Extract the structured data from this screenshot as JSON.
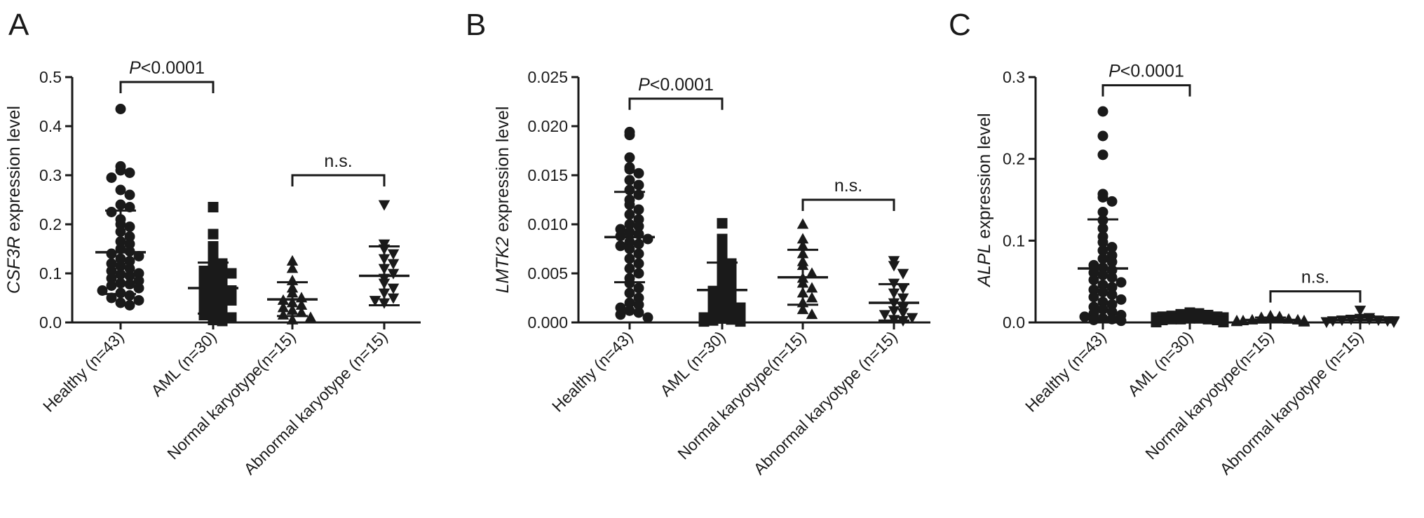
{
  "chart_data": [
    {
      "panel_letter": "A",
      "type": "scatter",
      "ylabel_gene": "CSF3R",
      "ylabel_suffix": " expression level",
      "ylim": [
        0,
        0.5
      ],
      "yticks": [
        "0.0",
        "0.1",
        "0.2",
        "0.3",
        "0.4",
        "0.5"
      ],
      "categories": [
        "Healthy (n=43)",
        "AML (n=30)",
        "Normal karyotype(n=15)",
        "Abnormal karyotype (n=15)"
      ],
      "markers": [
        "circle",
        "square",
        "triangle-up",
        "triangle-down"
      ],
      "series": [
        {
          "values": [
            0.435,
            0.318,
            0.31,
            0.305,
            0.295,
            0.27,
            0.26,
            0.24,
            0.235,
            0.225,
            0.21,
            0.2,
            0.195,
            0.185,
            0.175,
            0.165,
            0.16,
            0.15,
            0.145,
            0.14,
            0.135,
            0.13,
            0.125,
            0.12,
            0.115,
            0.11,
            0.105,
            0.1,
            0.098,
            0.095,
            0.09,
            0.085,
            0.08,
            0.078,
            0.075,
            0.07,
            0.065,
            0.06,
            0.055,
            0.05,
            0.045,
            0.04,
            0.035
          ]
        },
        {
          "values": [
            0.235,
            0.18,
            0.155,
            0.14,
            0.13,
            0.12,
            0.115,
            0.11,
            0.105,
            0.1,
            0.095,
            0.09,
            0.085,
            0.08,
            0.075,
            0.07,
            0.065,
            0.06,
            0.055,
            0.05,
            0.045,
            0.04,
            0.035,
            0.03,
            0.025,
            0.02,
            0.015,
            0.01,
            0.005,
            0.003
          ]
        },
        {
          "values": [
            0.125,
            0.11,
            0.085,
            0.07,
            0.06,
            0.05,
            0.045,
            0.04,
            0.035,
            0.03,
            0.025,
            0.02,
            0.015,
            0.01,
            0.005
          ]
        },
        {
          "values": [
            0.24,
            0.16,
            0.15,
            0.14,
            0.13,
            0.12,
            0.11,
            0.1,
            0.09,
            0.08,
            0.07,
            0.06,
            0.05,
            0.045,
            0.04
          ]
        }
      ],
      "error_bars": [
        {
          "mean": 0.143,
          "low": 0.058,
          "high": 0.228
        },
        {
          "mean": 0.07,
          "low": 0.018,
          "high": 0.122
        },
        {
          "mean": 0.047,
          "low": 0.013,
          "high": 0.082
        },
        {
          "mean": 0.095,
          "low": 0.035,
          "high": 0.155
        }
      ],
      "comparisons": [
        {
          "from": 0,
          "to": 1,
          "y": 0.49,
          "label_italic": "P",
          "label_rest": "<0.0001"
        },
        {
          "from": 2,
          "to": 3,
          "y": 0.3,
          "label_italic": "",
          "label_rest": "n.s."
        }
      ]
    },
    {
      "panel_letter": "B",
      "type": "scatter",
      "ylabel_gene": "LMTK2",
      "ylabel_suffix": " expression level",
      "ylim": [
        0,
        0.025
      ],
      "yticks": [
        "0.000",
        "0.005",
        "0.010",
        "0.015",
        "0.020",
        "0.025"
      ],
      "categories": [
        "Healthy (n=43)",
        "AML (n=30)",
        "Normal karyotype(n=15)",
        "Abnormal karyotype (n=15)"
      ],
      "markers": [
        "circle",
        "square",
        "triangle-up",
        "triangle-down"
      ],
      "series": [
        {
          "values": [
            0.0194,
            0.0191,
            0.0168,
            0.0158,
            0.0156,
            0.0152,
            0.0145,
            0.014,
            0.0135,
            0.013,
            0.0125,
            0.012,
            0.0115,
            0.011,
            0.0105,
            0.01,
            0.0098,
            0.0095,
            0.0092,
            0.009,
            0.0088,
            0.0085,
            0.0082,
            0.008,
            0.0078,
            0.0075,
            0.007,
            0.0065,
            0.006,
            0.0055,
            0.005,
            0.0045,
            0.004,
            0.0035,
            0.003,
            0.0025,
            0.002,
            0.0018,
            0.0015,
            0.0012,
            0.001,
            0.0008,
            0.0005
          ]
        },
        {
          "values": [
            0.0101,
            0.0085,
            0.0078,
            0.0072,
            0.0066,
            0.006,
            0.0055,
            0.005,
            0.0046,
            0.0042,
            0.0038,
            0.0035,
            0.0032,
            0.003,
            0.0028,
            0.0025,
            0.0022,
            0.002,
            0.0018,
            0.0015,
            0.0013,
            0.0011,
            0.0009,
            0.0007,
            0.0005,
            0.0004,
            0.0003,
            0.0002,
            0.0001,
            0.0001
          ]
        },
        {
          "values": [
            0.01,
            0.0085,
            0.0078,
            0.007,
            0.0062,
            0.0058,
            0.005,
            0.0045,
            0.004,
            0.0035,
            0.003,
            0.0025,
            0.002,
            0.0013,
            0.0008
          ]
        },
        {
          "values": [
            0.0063,
            0.0058,
            0.005,
            0.004,
            0.0035,
            0.003,
            0.0025,
            0.002,
            0.0015,
            0.0012,
            0.001,
            0.0008,
            0.0005,
            0.0003,
            0.0002
          ]
        }
      ],
      "error_bars": [
        {
          "mean": 0.0087,
          "low": 0.0041,
          "high": 0.0133
        },
        {
          "mean": 0.0033,
          "low": 0.0005,
          "high": 0.0061
        },
        {
          "mean": 0.0046,
          "low": 0.0018,
          "high": 0.0074
        },
        {
          "mean": 0.002,
          "low": 0.0002,
          "high": 0.0039
        }
      ],
      "comparisons": [
        {
          "from": 0,
          "to": 1,
          "y": 0.0228,
          "label_italic": "P",
          "label_rest": "<0.0001"
        },
        {
          "from": 2,
          "to": 3,
          "y": 0.0125,
          "label_italic": "",
          "label_rest": "n.s."
        }
      ]
    },
    {
      "panel_letter": "C",
      "type": "scatter",
      "ylabel_gene": "ALPL",
      "ylabel_suffix": " expression level",
      "ylim": [
        0,
        0.3
      ],
      "yticks": [
        "0.0",
        "0.1",
        "0.2",
        "0.3"
      ],
      "categories": [
        "Healthy (n=43)",
        "AML (n=30)",
        "Normal karyotype(n=15)",
        "Abnormal karyotype (n=15)"
      ],
      "markers": [
        "circle",
        "square",
        "triangle-up",
        "triangle-down"
      ],
      "series": [
        {
          "values": [
            0.258,
            0.228,
            0.205,
            0.157,
            0.153,
            0.148,
            0.135,
            0.125,
            0.115,
            0.105,
            0.098,
            0.092,
            0.088,
            0.082,
            0.078,
            0.074,
            0.07,
            0.067,
            0.064,
            0.061,
            0.058,
            0.055,
            0.052,
            0.049,
            0.046,
            0.043,
            0.04,
            0.037,
            0.034,
            0.031,
            0.028,
            0.025,
            0.022,
            0.019,
            0.016,
            0.013,
            0.011,
            0.009,
            0.007,
            0.005,
            0.004,
            0.003,
            0.002
          ]
        },
        {
          "values": [
            0.012,
            0.011,
            0.01,
            0.009,
            0.008,
            0.007,
            0.007,
            0.006,
            0.006,
            0.005,
            0.005,
            0.004,
            0.004,
            0.004,
            0.003,
            0.003,
            0.003,
            0.002,
            0.002,
            0.002,
            0.002,
            0.001,
            0.001,
            0.001,
            0.001,
            0.001,
            0.0005,
            0.0005,
            0.0005,
            0.0005
          ]
        },
        {
          "values": [
            0.008,
            0.007,
            0.006,
            0.005,
            0.005,
            0.004,
            0.004,
            0.003,
            0.003,
            0.002,
            0.002,
            0.002,
            0.001,
            0.001,
            0.0005
          ]
        },
        {
          "values": [
            0.015,
            0.006,
            0.005,
            0.004,
            0.004,
            0.003,
            0.003,
            0.002,
            0.002,
            0.002,
            0.001,
            0.001,
            0.001,
            0.0005,
            0.0005
          ]
        }
      ],
      "error_bars": [
        {
          "mean": 0.066,
          "low": 0.006,
          "high": 0.126
        },
        {
          "mean": 0.003,
          "low": 0.0,
          "high": 0.006
        },
        {
          "mean": 0.003,
          "low": 0.0,
          "high": 0.006
        },
        {
          "mean": 0.003,
          "low": 0.0,
          "high": 0.006
        }
      ],
      "comparisons": [
        {
          "from": 0,
          "to": 1,
          "y": 0.29,
          "label_italic": "P",
          "label_rest": "<0.0001"
        },
        {
          "from": 2,
          "to": 3,
          "y": 0.038,
          "label_italic": "",
          "label_rest": "n.s."
        }
      ]
    }
  ]
}
